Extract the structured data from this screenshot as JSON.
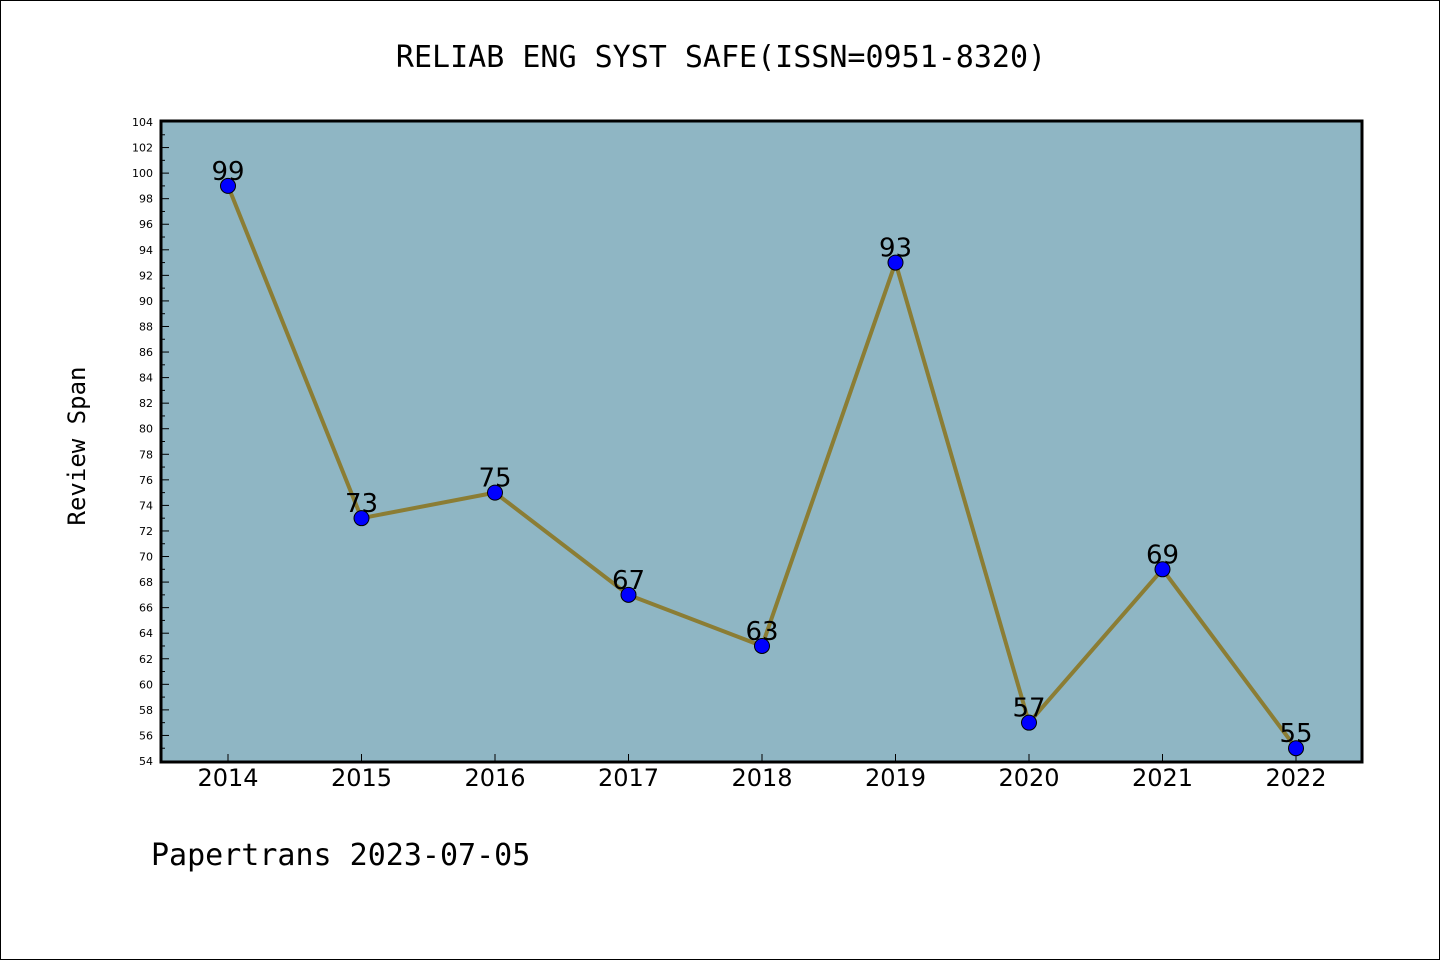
{
  "chart_data": {
    "type": "line",
    "title": "RELIAB ENG SYST SAFE(ISSN=0951-8320)",
    "xlabel": "",
    "ylabel": "Review Span",
    "categories": [
      "2014",
      "2015",
      "2016",
      "2017",
      "2018",
      "2019",
      "2020",
      "2021",
      "2022"
    ],
    "series": [
      {
        "values": [
          99,
          73,
          75,
          67,
          63,
          93,
          57,
          69,
          55
        ]
      }
    ],
    "ylim": [
      54,
      104
    ],
    "ytick_step": 2,
    "yticks": [
      "54",
      "56",
      "58",
      "60",
      "62",
      "64",
      "66",
      "68",
      "70",
      "72",
      "74",
      "76",
      "78",
      "80",
      "82",
      "84",
      "86",
      "88",
      "90",
      "92",
      "94",
      "96",
      "98",
      "100",
      "102",
      "104"
    ],
    "data_labels": [
      "99",
      "73",
      "75",
      "67",
      "63",
      "93",
      "57",
      "69",
      "55"
    ],
    "grid": false,
    "legend": "none",
    "colors": {
      "plot_background": "#8fb6c4",
      "line": "#8b7d34",
      "marker": "#0000ff",
      "marker_edge": "#000000",
      "axes": "#000000"
    }
  },
  "footer": {
    "text": "Papertrans 2023-07-05"
  }
}
